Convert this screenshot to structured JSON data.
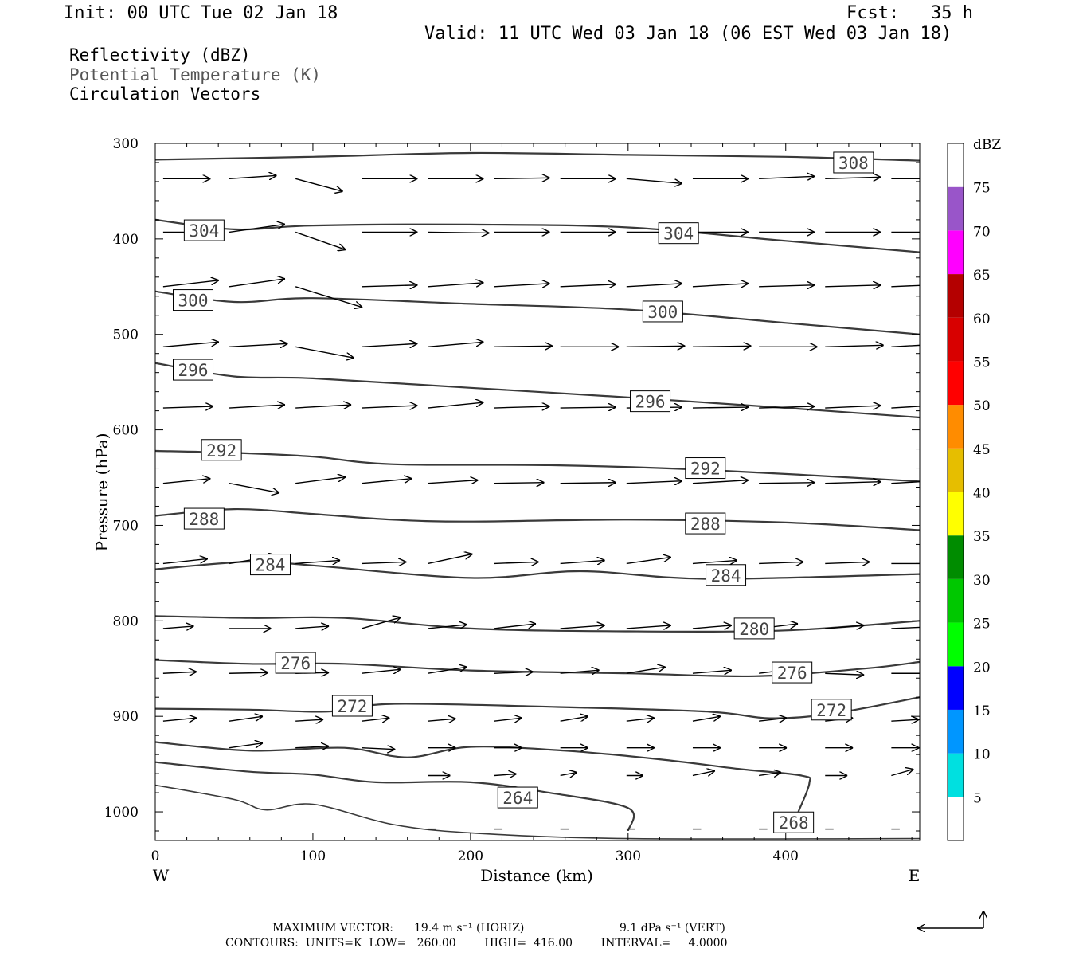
{
  "header": {
    "init": "Init: 00 UTC Tue 02 Jan 18",
    "fcst": "Fcst:   35 h",
    "valid": "Valid: 11 UTC Wed 03 Jan 18 (06 EST Wed 03 Jan 18)"
  },
  "fields": {
    "reflectivity": "Reflectivity (dBZ)",
    "theta": "Potential Temperature (K)",
    "vectors": "Circulation Vectors"
  },
  "footer": {
    "max_vector_label": "MAXIMUM VECTOR:",
    "horiz": "19.4 m s⁻¹ (HORIZ)",
    "vert": "9.1 dPa s⁻¹ (VERT)",
    "contours": "CONTOURS:  UNITS=K  LOW=   260.00        HIGH=  416.00        INTERVAL=     4.0000"
  },
  "colors": {
    "contour": "#3a3a3a",
    "vector": "#000000",
    "colorbar": [
      "#ffffff",
      "#00e0e0",
      "#0096ff",
      "#0000ff",
      "#00ff00",
      "#00c800",
      "#008c00",
      "#ffff00",
      "#e6be00",
      "#ff8c00",
      "#ff0000",
      "#d80000",
      "#b40000",
      "#ff00ff",
      "#9955c9",
      "#ffffff"
    ]
  },
  "chart_data": {
    "type": "cross-section",
    "xlabel": "Distance (km)",
    "ylabel": "Pressure (hPa)",
    "xlim": [
      0,
      485
    ],
    "ylim": [
      1030,
      300
    ],
    "x_ticks": [
      "0",
      "100",
      "200",
      "300",
      "400"
    ],
    "y_ticks": [
      "300",
      "400",
      "500",
      "600",
      "700",
      "800",
      "900",
      "1000"
    ],
    "x_end_labels": {
      "left": "W",
      "right": "E"
    },
    "colorbar": {
      "unit": "dBZ",
      "levels": [
        "5",
        "10",
        "15",
        "20",
        "25",
        "30",
        "35",
        "40",
        "45",
        "50",
        "55",
        "60",
        "65",
        "70",
        "75"
      ]
    },
    "theta_contours": [
      {
        "value": 308,
        "points": [
          [
            0,
            317
          ],
          [
            100,
            314
          ],
          [
            200,
            310
          ],
          [
            300,
            312
          ],
          [
            400,
            314
          ],
          [
            485,
            318
          ]
        ]
      },
      {
        "value": 304,
        "points": [
          [
            0,
            380
          ],
          [
            50,
            390
          ],
          [
            100,
            386
          ],
          [
            200,
            385
          ],
          [
            300,
            388
          ],
          [
            400,
            402
          ],
          [
            485,
            414
          ]
        ]
      },
      {
        "value": 300,
        "points": [
          [
            0,
            455
          ],
          [
            50,
            466
          ],
          [
            100,
            462
          ],
          [
            200,
            468
          ],
          [
            300,
            474
          ],
          [
            400,
            488
          ],
          [
            485,
            500
          ]
        ]
      },
      {
        "value": 296,
        "points": [
          [
            0,
            530
          ],
          [
            50,
            544
          ],
          [
            100,
            546
          ],
          [
            200,
            556
          ],
          [
            300,
            566
          ],
          [
            400,
            577
          ],
          [
            485,
            587
          ]
        ]
      },
      {
        "value": 292,
        "points": [
          [
            0,
            622
          ],
          [
            50,
            624
          ],
          [
            100,
            628
          ],
          [
            150,
            636
          ],
          [
            250,
            637
          ],
          [
            350,
            642
          ],
          [
            485,
            654
          ]
        ]
      },
      {
        "value": 288,
        "points": [
          [
            0,
            690
          ],
          [
            50,
            683
          ],
          [
            100,
            688
          ],
          [
            150,
            694
          ],
          [
            200,
            696
          ],
          [
            300,
            694
          ],
          [
            400,
            697
          ],
          [
            485,
            705
          ]
        ]
      },
      {
        "value": 284,
        "points": [
          [
            0,
            746
          ],
          [
            60,
            738
          ],
          [
            100,
            742
          ],
          [
            200,
            755
          ],
          [
            270,
            748
          ],
          [
            350,
            756
          ],
          [
            485,
            751
          ]
        ]
      },
      {
        "value": 280,
        "points": [
          [
            0,
            795
          ],
          [
            60,
            797
          ],
          [
            120,
            797
          ],
          [
            200,
            808
          ],
          [
            300,
            811
          ],
          [
            400,
            810
          ],
          [
            485,
            800
          ]
        ]
      },
      {
        "value": 276,
        "points": [
          [
            0,
            841
          ],
          [
            60,
            845
          ],
          [
            120,
            845
          ],
          [
            200,
            852
          ],
          [
            300,
            855
          ],
          [
            380,
            858
          ],
          [
            450,
            850
          ],
          [
            485,
            843
          ]
        ]
      },
      {
        "value": 272,
        "points": [
          [
            0,
            892
          ],
          [
            60,
            893
          ],
          [
            110,
            895
          ],
          [
            150,
            887
          ],
          [
            250,
            890
          ],
          [
            350,
            895
          ],
          [
            390,
            902
          ],
          [
            430,
            897
          ],
          [
            485,
            880
          ]
        ]
      },
      {
        "value": 268,
        "points": [
          [
            0,
            927
          ],
          [
            60,
            936
          ],
          [
            120,
            933
          ],
          [
            160,
            943
          ],
          [
            200,
            932
          ],
          [
            260,
            936
          ],
          [
            320,
            945
          ],
          [
            370,
            955
          ],
          [
            410,
            962
          ],
          [
            415,
            970
          ],
          [
            408,
            1000
          ]
        ]
      },
      {
        "value": 264,
        "points": [
          [
            0,
            948
          ],
          [
            60,
            958
          ],
          [
            100,
            961
          ],
          [
            140,
            969
          ],
          [
            200,
            969
          ],
          [
            250,
            980
          ],
          [
            300,
            996
          ],
          [
            300,
            1020
          ]
        ]
      },
      {
        "value": 260,
        "points": [
          [
            0,
            972
          ],
          [
            50,
            987
          ],
          [
            70,
            998
          ],
          [
            100,
            992
          ],
          [
            150,
            1013
          ],
          [
            200,
            1022
          ],
          [
            300,
            1028
          ],
          [
            485,
            1028
          ]
        ]
      }
    ],
    "theta_labels": [
      {
        "text": "308",
        "x": 443,
        "p": 320
      },
      {
        "text": "304",
        "x": 31,
        "p": 391
      },
      {
        "text": "304",
        "x": 332,
        "p": 394
      },
      {
        "text": "300",
        "x": 24,
        "p": 464
      },
      {
        "text": "300",
        "x": 322,
        "p": 476
      },
      {
        "text": "296",
        "x": 24,
        "p": 537
      },
      {
        "text": "296",
        "x": 314,
        "p": 570
      },
      {
        "text": "292",
        "x": 42,
        "p": 621
      },
      {
        "text": "292",
        "x": 349,
        "p": 640
      },
      {
        "text": "288",
        "x": 31,
        "p": 693
      },
      {
        "text": "288",
        "x": 349,
        "p": 698
      },
      {
        "text": "284",
        "x": 73,
        "p": 741
      },
      {
        "text": "284",
        "x": 362,
        "p": 752
      },
      {
        "text": "280",
        "x": 380,
        "p": 808
      },
      {
        "text": "276",
        "x": 89,
        "p": 844
      },
      {
        "text": "276",
        "x": 404,
        "p": 854
      },
      {
        "text": "272",
        "x": 125,
        "p": 889
      },
      {
        "text": "272",
        "x": 429,
        "p": 893
      },
      {
        "text": "268",
        "x": 405,
        "p": 1011
      },
      {
        "text": "264",
        "x": 230,
        "p": 985
      }
    ],
    "vector_levels": [
      {
        "p": 337,
        "u": [
          0.85,
          0.85,
          0.85,
          1.0,
          1.0,
          1.0,
          1.0,
          1.0,
          1.0,
          1.0,
          1.0,
          1.0,
          1.0,
          0.8
        ],
        "w": [
          0,
          -4,
          16,
          0,
          0,
          -1,
          0,
          6,
          0,
          -3,
          -2,
          0
        ]
      },
      {
        "p": 393,
        "u": [
          0.9,
          1.0,
          0.9,
          1.0,
          1.1,
          1.0,
          1.0,
          1.0,
          1.0,
          1.0,
          1.0,
          1.0,
          1.0,
          0.7
        ],
        "w": [
          0,
          -10,
          22,
          0,
          1,
          0,
          0,
          0,
          0,
          0,
          0,
          0
        ]
      },
      {
        "p": 450,
        "u": [
          1.0,
          1.0,
          1.2,
          1.0,
          1.0,
          1.0,
          1.0,
          1.0,
          1.0,
          1.0,
          1.0,
          1.0,
          1.0,
          0.7
        ],
        "w": [
          -8,
          -10,
          26,
          -2,
          -5,
          -4,
          -3,
          -4,
          -4,
          -2,
          -2,
          -3
        ]
      },
      {
        "p": 513,
        "u": [
          1.0,
          1.05,
          1.05,
          1.0,
          1.0,
          1.05,
          1.05,
          1.05,
          1.05,
          1.05,
          1.05,
          1.05,
          1.05,
          0.7
        ],
        "w": [
          -6,
          -4,
          14,
          -4,
          -6,
          -1,
          0,
          -1,
          -1,
          0,
          -2,
          -4
        ]
      },
      {
        "p": 577,
        "u": [
          0.9,
          1.0,
          1.0,
          1.0,
          1.0,
          1.0,
          1.0,
          1.0,
          1.0,
          1.0,
          1.0,
          1.0,
          1.0,
          0.7
        ],
        "w": [
          -2,
          -4,
          -4,
          -3,
          -7,
          -2,
          -1,
          -1,
          -1,
          -2,
          -3,
          -4
        ]
      },
      {
        "p": 656,
        "u": [
          0.85,
          0.9,
          0.9,
          0.9,
          0.9,
          0.9,
          1.0,
          1.0,
          1.0,
          1.0,
          1.0,
          1.0,
          1.0,
          0.7
        ],
        "w": [
          -6,
          12,
          -8,
          -6,
          -4,
          -1,
          -1,
          -3,
          -4,
          -1,
          -2,
          -4
        ]
      },
      {
        "p": 740,
        "u": [
          0.8,
          0.85,
          0.8,
          0.8,
          0.8,
          0.8,
          0.8,
          0.8,
          0.8,
          0.8,
          0.8,
          0.8,
          0.8,
          0.6
        ],
        "w": [
          -6,
          -10,
          -4,
          -2,
          -12,
          -2,
          -4,
          -8,
          -4,
          -2,
          -2,
          0
        ]
      },
      {
        "p": 808,
        "u": [
          0.55,
          0.75,
          0.6,
          0.7,
          0.7,
          0.75,
          0.8,
          0.8,
          0.7,
          0.7,
          0.7,
          0.7,
          0.7,
          0.5
        ],
        "w": [
          -3,
          0,
          -3,
          -14,
          -5,
          -6,
          -4,
          -4,
          -4,
          -6,
          -4,
          -2
        ]
      },
      {
        "p": 855,
        "u": [
          0.6,
          0.7,
          0.6,
          0.7,
          0.7,
          0.7,
          0.7,
          0.7,
          0.7,
          0.7,
          0.7,
          0.7,
          0.7,
          0.5
        ],
        "w": [
          -2,
          -1,
          -1,
          -5,
          -8,
          -2,
          -4,
          -8,
          -4,
          -6,
          2,
          0
        ]
      },
      {
        "p": 905,
        "u": [
          0.6,
          0.6,
          0.5,
          0.5,
          0.5,
          0.5,
          0.5,
          0.5,
          0.5,
          0.5,
          0.5,
          0.5,
          0.5,
          0.4
        ],
        "w": [
          -4,
          -6,
          -2,
          -4,
          -3,
          -4,
          -6,
          -4,
          -6,
          -4,
          -4,
          -2
        ]
      },
      {
        "p": 933,
        "u": [
          0.0,
          0.6,
          0.6,
          0.6,
          0.5,
          0.5,
          0.5,
          0.5,
          0.5,
          0.5,
          0.5,
          0.5,
          0.5,
          0.4
        ],
        "w": [
          0,
          -6,
          -2,
          2,
          0,
          0,
          0,
          0,
          0,
          0,
          0,
          0
        ]
      },
      {
        "p": 962,
        "u": [
          0.0,
          0.0,
          0.0,
          0.0,
          0.4,
          0.4,
          0.3,
          0.3,
          0.4,
          0.4,
          0.4,
          0.4,
          0.4,
          0.4
        ],
        "w": [
          0,
          0,
          0,
          0,
          0,
          -2,
          -4,
          0,
          -6,
          -4,
          0,
          -8
        ]
      },
      {
        "p": 1018,
        "u": [
          0.0,
          0.0,
          0.0,
          0.0,
          0.15,
          0.15,
          0.15,
          0.15,
          0.15,
          0.15,
          0.15,
          0.15,
          0.15,
          0.15
        ],
        "w": [
          0,
          0,
          0,
          0,
          0,
          0,
          0,
          0,
          0,
          0,
          0,
          0
        ]
      }
    ],
    "vector_x_km": [
      5,
      47,
      89,
      131,
      173,
      215,
      257,
      299,
      341,
      383,
      425,
      467,
      485
    ]
  }
}
